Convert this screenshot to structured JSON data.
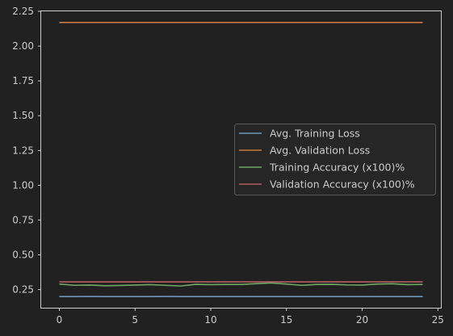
{
  "chart_data": {
    "type": "line",
    "title": "",
    "xlabel": "",
    "ylabel": "",
    "xlim": [
      -1.2,
      25.2
    ],
    "ylim": [
      0.12,
      2.25
    ],
    "xticks": [
      0,
      5,
      10,
      15,
      20,
      25
    ],
    "yticks": [
      0.25,
      0.5,
      0.75,
      1.0,
      1.25,
      1.5,
      1.75,
      2.0,
      2.25
    ],
    "xtick_labels": [
      "0",
      "5",
      "10",
      "15",
      "20",
      "25"
    ],
    "ytick_labels": [
      "0.25",
      "0.50",
      "0.75",
      "1.00",
      "1.25",
      "1.50",
      "1.75",
      "2.00",
      "2.25"
    ],
    "grid": false,
    "legend_position": "center-right",
    "x": [
      0,
      1,
      2,
      3,
      4,
      5,
      6,
      7,
      8,
      9,
      10,
      11,
      12,
      13,
      14,
      15,
      16,
      17,
      18,
      19,
      20,
      21,
      22,
      23,
      24
    ],
    "series": [
      {
        "name": "Avg. Training Loss",
        "color": "#6d96b9",
        "values": [
          0.2,
          0.2,
          0.201,
          0.2,
          0.2,
          0.2,
          0.2,
          0.201,
          0.2,
          0.2,
          0.2,
          0.2,
          0.2,
          0.2,
          0.2,
          0.2,
          0.2,
          0.2,
          0.2,
          0.2,
          0.2,
          0.2,
          0.2,
          0.2,
          0.2
        ]
      },
      {
        "name": "Avg. Validation Loss",
        "color": "#c97b3f",
        "values": [
          2.17,
          2.17,
          2.17,
          2.17,
          2.17,
          2.17,
          2.17,
          2.17,
          2.17,
          2.17,
          2.17,
          2.17,
          2.17,
          2.17,
          2.17,
          2.17,
          2.17,
          2.17,
          2.17,
          2.17,
          2.17,
          2.17,
          2.17,
          2.17,
          2.17
        ]
      },
      {
        "name": "Training Accuracy (x100)%",
        "color": "#6fa863",
        "values": [
          0.29,
          0.281,
          0.283,
          0.278,
          0.28,
          0.283,
          0.286,
          0.281,
          0.276,
          0.288,
          0.286,
          0.287,
          0.287,
          0.293,
          0.298,
          0.29,
          0.281,
          0.287,
          0.288,
          0.284,
          0.283,
          0.29,
          0.292,
          0.286,
          0.287
        ]
      },
      {
        "name": "Validation Accuracy (x100)%",
        "color": "#b45d63",
        "values": [
          0.306,
          0.306,
          0.306,
          0.306,
          0.306,
          0.306,
          0.306,
          0.306,
          0.306,
          0.306,
          0.306,
          0.306,
          0.306,
          0.306,
          0.306,
          0.306,
          0.306,
          0.306,
          0.306,
          0.306,
          0.306,
          0.306,
          0.306,
          0.306,
          0.306
        ]
      }
    ]
  }
}
